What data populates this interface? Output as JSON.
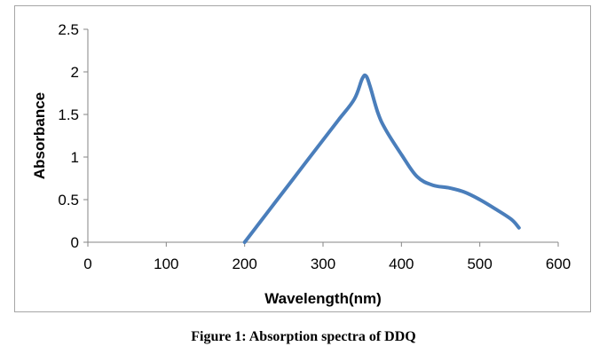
{
  "chart_data": {
    "type": "line",
    "title": "",
    "xlabel": "Wavelength(nm)",
    "ylabel": "Absorbance",
    "xlim": [
      0,
      600
    ],
    "ylim": [
      0,
      2.5
    ],
    "x_ticks": [
      0,
      100,
      200,
      300,
      400,
      500,
      600
    ],
    "y_ticks": [
      0,
      0.5,
      1,
      1.5,
      2,
      2.5
    ],
    "x_tick_labels": [
      "0",
      "100",
      "200",
      "300",
      "400",
      "500",
      "600"
    ],
    "y_tick_labels": [
      "0",
      "0.5",
      "1",
      "1.5",
      "2",
      "2.5"
    ],
    "grid": false,
    "legend": "none",
    "line_color": "#4a7ebb",
    "series": [
      {
        "x": [
          200,
          220,
          240,
          260,
          280,
          300,
          320,
          340,
          350,
          355,
          360,
          370,
          380,
          400,
          420,
          440,
          460,
          480,
          500,
          520,
          540,
          550
        ],
        "y": [
          0,
          0.24,
          0.48,
          0.72,
          0.96,
          1.2,
          1.44,
          1.68,
          1.92,
          1.95,
          1.83,
          1.52,
          1.32,
          1.03,
          0.77,
          0.67,
          0.64,
          0.59,
          0.5,
          0.39,
          0.27,
          0.17
        ]
      }
    ]
  },
  "caption": "Figure 1: Absorption spectra of DDQ"
}
